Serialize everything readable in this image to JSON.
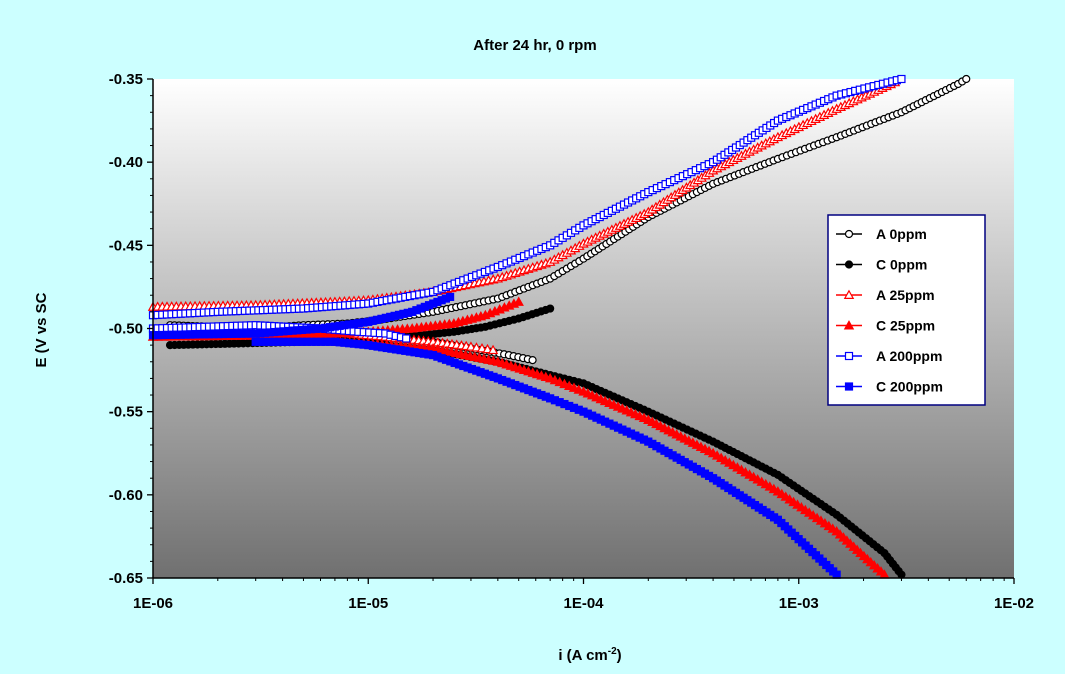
{
  "chart_data": {
    "type": "scatter",
    "title": "After 24 hr, 0 rpm",
    "xlabel": "i (A cm",
    "xlabel_sup": "-2",
    "xlabel_close": ")",
    "ylabel": "E (V vs SC",
    "x_scale": "log",
    "xlim": [
      1e-06,
      0.01
    ],
    "ylim": [
      -0.65,
      -0.35
    ],
    "x_ticks": [
      1e-06,
      1e-05,
      0.0001,
      0.001,
      0.01
    ],
    "x_tick_labels": [
      "1E-06",
      "1E-05",
      "1E-04",
      "1E-03",
      "1E-02"
    ],
    "y_ticks": [
      -0.35,
      -0.4,
      -0.45,
      -0.5,
      -0.55,
      -0.6,
      -0.65
    ],
    "y_tick_labels": [
      "-0.35",
      "-0.40",
      "-0.45",
      "-0.50",
      "-0.55",
      "-0.60",
      "-0.65"
    ],
    "grid": false,
    "legend_position": "right",
    "plot_background": "gradient white (top) to dark gray (bottom)",
    "series": [
      {
        "name": "A 0ppm",
        "color": "#000000",
        "marker": "circle-open",
        "points": [
          [
            1.2e-06,
            -0.498
          ],
          [
            3e-06,
            -0.5
          ],
          [
            5e-06,
            -0.498
          ],
          [
            8e-06,
            -0.497
          ],
          [
            1.1e-05,
            -0.495
          ],
          [
            2e-05,
            -0.49
          ],
          [
            4e-05,
            -0.482
          ],
          [
            7e-05,
            -0.47
          ],
          [
            0.0001,
            -0.458
          ],
          [
            0.0002,
            -0.433
          ],
          [
            0.0004,
            -0.413
          ],
          [
            0.0008,
            -0.398
          ],
          [
            0.0015,
            -0.385
          ],
          [
            0.003,
            -0.37
          ],
          [
            0.0055,
            -0.353
          ],
          [
            0.006,
            -0.35
          ]
        ]
      },
      {
        "name": "A 0ppm",
        "color": "#000000",
        "marker": "circle-open",
        "points": [
          [
            8e-06,
            -0.503
          ],
          [
            1.2e-05,
            -0.505
          ],
          [
            2e-05,
            -0.508
          ],
          [
            3e-05,
            -0.512
          ],
          [
            4.5e-05,
            -0.516
          ],
          [
            5.8e-05,
            -0.519
          ]
        ]
      },
      {
        "name": "C 0ppm",
        "color": "#000000",
        "marker": "circle-filled",
        "points": [
          [
            1.2e-06,
            -0.51
          ],
          [
            2.5e-06,
            -0.509
          ],
          [
            5e-06,
            -0.508
          ],
          [
            9e-06,
            -0.507
          ],
          [
            1.5e-05,
            -0.505
          ],
          [
            2.5e-05,
            -0.502
          ],
          [
            3.5e-05,
            -0.499
          ],
          [
            5e-05,
            -0.494
          ],
          [
            7e-05,
            -0.488
          ]
        ]
      },
      {
        "name": "C 0ppm",
        "color": "#000000",
        "marker": "circle-filled",
        "points": [
          [
            7e-06,
            -0.508
          ],
          [
            1e-05,
            -0.509
          ],
          [
            2e-05,
            -0.513
          ],
          [
            4e-05,
            -0.52
          ],
          [
            7e-05,
            -0.528
          ],
          [
            0.0001,
            -0.533
          ],
          [
            0.0002,
            -0.55
          ],
          [
            0.0004,
            -0.568
          ],
          [
            0.0008,
            -0.588
          ],
          [
            0.0015,
            -0.612
          ],
          [
            0.0025,
            -0.635
          ],
          [
            0.003,
            -0.648
          ]
        ]
      },
      {
        "name": "A 25ppm",
        "color": "#ff0000",
        "marker": "triangle-open",
        "points": [
          [
            1e-06,
            -0.487
          ],
          [
            3e-06,
            -0.486
          ],
          [
            7e-06,
            -0.484
          ],
          [
            1e-05,
            -0.483
          ],
          [
            2e-05,
            -0.478
          ],
          [
            4e-05,
            -0.47
          ],
          [
            7e-05,
            -0.46
          ],
          [
            0.0001,
            -0.449
          ],
          [
            0.0002,
            -0.43
          ],
          [
            0.0004,
            -0.405
          ],
          [
            0.0008,
            -0.385
          ],
          [
            0.0015,
            -0.368
          ],
          [
            0.0028,
            -0.352
          ]
        ]
      },
      {
        "name": "A 25ppm",
        "color": "#ff0000",
        "marker": "triangle-open",
        "points": [
          [
            8e-06,
            -0.503
          ],
          [
            1.2e-05,
            -0.505
          ],
          [
            2e-05,
            -0.508
          ],
          [
            3e-05,
            -0.511
          ],
          [
            3.8e-05,
            -0.513
          ]
        ]
      },
      {
        "name": "C 25ppm",
        "color": "#ff0000",
        "marker": "triangle-filled",
        "points": [
          [
            1e-06,
            -0.505
          ],
          [
            5e-06,
            -0.504
          ],
          [
            1e-05,
            -0.502
          ],
          [
            1.6e-05,
            -0.5
          ],
          [
            2.5e-05,
            -0.497
          ],
          [
            3.5e-05,
            -0.492
          ],
          [
            5e-05,
            -0.484
          ]
        ]
      },
      {
        "name": "C 25ppm",
        "color": "#ff0000",
        "marker": "triangle-filled",
        "points": [
          [
            5e-06,
            -0.507
          ],
          [
            1e-05,
            -0.509
          ],
          [
            2e-05,
            -0.512
          ],
          [
            4e-05,
            -0.52
          ],
          [
            7e-05,
            -0.53
          ],
          [
            0.0001,
            -0.538
          ],
          [
            0.0002,
            -0.555
          ],
          [
            0.0004,
            -0.575
          ],
          [
            0.0008,
            -0.598
          ],
          [
            0.0015,
            -0.622
          ],
          [
            0.0025,
            -0.648
          ]
        ]
      },
      {
        "name": "A 200ppm",
        "color": "#0000ff",
        "marker": "square-open",
        "points": [
          [
            1e-06,
            -0.492
          ],
          [
            2e-06,
            -0.49
          ],
          [
            5e-06,
            -0.488
          ],
          [
            1e-05,
            -0.485
          ],
          [
            2e-05,
            -0.478
          ],
          [
            4e-05,
            -0.463
          ],
          [
            7e-05,
            -0.45
          ],
          [
            0.0001,
            -0.438
          ],
          [
            0.0002,
            -0.418
          ],
          [
            0.0004,
            -0.4
          ],
          [
            0.0008,
            -0.375
          ],
          [
            0.0015,
            -0.36
          ],
          [
            0.003,
            -0.35
          ]
        ]
      },
      {
        "name": "A 200ppm",
        "color": "#0000ff",
        "marker": "square-open",
        "points": [
          [
            1e-06,
            -0.5
          ],
          [
            3e-06,
            -0.498
          ],
          [
            6e-06,
            -0.5
          ],
          [
            9e-06,
            -0.502
          ],
          [
            1.2e-05,
            -0.503
          ],
          [
            1.5e-05,
            -0.506
          ]
        ]
      },
      {
        "name": "C 200ppm",
        "color": "#0000ff",
        "marker": "square-filled",
        "points": [
          [
            1e-06,
            -0.504
          ],
          [
            3e-06,
            -0.503
          ],
          [
            6e-06,
            -0.5
          ],
          [
            1e-05,
            -0.496
          ],
          [
            1.6e-05,
            -0.49
          ],
          [
            2.4e-05,
            -0.481
          ]
        ]
      },
      {
        "name": "C 200ppm",
        "color": "#0000ff",
        "marker": "square-filled",
        "points": [
          [
            3e-06,
            -0.508
          ],
          [
            7e-06,
            -0.508
          ],
          [
            1e-05,
            -0.51
          ],
          [
            2e-05,
            -0.516
          ],
          [
            4e-05,
            -0.53
          ],
          [
            7e-05,
            -0.542
          ],
          [
            0.0001,
            -0.55
          ],
          [
            0.0002,
            -0.568
          ],
          [
            0.0004,
            -0.59
          ],
          [
            0.0008,
            -0.615
          ],
          [
            0.0015,
            -0.648
          ]
        ]
      }
    ],
    "legend": [
      {
        "label": "A 0ppm",
        "color": "#000000",
        "marker": "circle-open"
      },
      {
        "label": "C 0ppm",
        "color": "#000000",
        "marker": "circle-filled"
      },
      {
        "label": "A 25ppm",
        "color": "#ff0000",
        "marker": "triangle-open"
      },
      {
        "label": "C 25ppm",
        "color": "#ff0000",
        "marker": "triangle-filled"
      },
      {
        "label": "A 200ppm",
        "color": "#0000ff",
        "marker": "square-open"
      },
      {
        "label": "C 200ppm",
        "color": "#0000ff",
        "marker": "square-filled"
      }
    ]
  },
  "colors": {
    "background": "#ccffff",
    "legend_border": "#000080"
  }
}
